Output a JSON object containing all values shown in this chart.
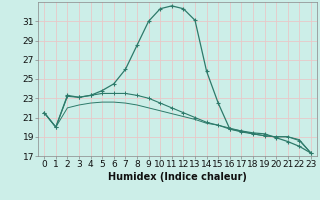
{
  "xlabel": "Humidex (Indice chaleur)",
  "background_color": "#cceee8",
  "grid_color": "#e8c8c8",
  "line_color": "#2d7a6a",
  "x_values": [
    0,
    1,
    2,
    3,
    4,
    5,
    6,
    7,
    8,
    9,
    10,
    11,
    12,
    13,
    14,
    15,
    16,
    17,
    18,
    19,
    20,
    21,
    22,
    23
  ],
  "main_curve_y": [
    21.5,
    20.0,
    23.3,
    23.1,
    23.3,
    23.8,
    24.5,
    26.0,
    28.5,
    31.0,
    32.3,
    32.6,
    32.3,
    31.1,
    25.8,
    22.5,
    19.8,
    19.6,
    19.4,
    19.3,
    18.9,
    18.5,
    18.0,
    17.3
  ],
  "flat_line1_y": [
    21.5,
    20.0,
    23.2,
    23.1,
    23.3,
    23.5,
    23.5,
    23.5,
    23.3,
    23.0,
    22.5,
    22.0,
    21.5,
    21.0,
    20.5,
    20.2,
    19.8,
    19.5,
    19.3,
    19.1,
    19.0,
    19.0,
    18.6,
    17.3
  ],
  "flat_line2_y": [
    21.5,
    20.0,
    22.0,
    22.3,
    22.5,
    22.6,
    22.6,
    22.5,
    22.3,
    22.0,
    21.7,
    21.4,
    21.1,
    20.8,
    20.4,
    20.2,
    19.9,
    19.6,
    19.3,
    19.1,
    19.0,
    19.0,
    18.7,
    17.3
  ],
  "ylim": [
    17,
    33
  ],
  "xlim": [
    -0.5,
    23.5
  ],
  "yticks": [
    17,
    19,
    21,
    23,
    25,
    27,
    29,
    31
  ],
  "xticks": [
    0,
    1,
    2,
    3,
    4,
    5,
    6,
    7,
    8,
    9,
    10,
    11,
    12,
    13,
    14,
    15,
    16,
    17,
    18,
    19,
    20,
    21,
    22,
    23
  ],
  "xlabel_fontsize": 7,
  "tick_fontsize": 6.5
}
